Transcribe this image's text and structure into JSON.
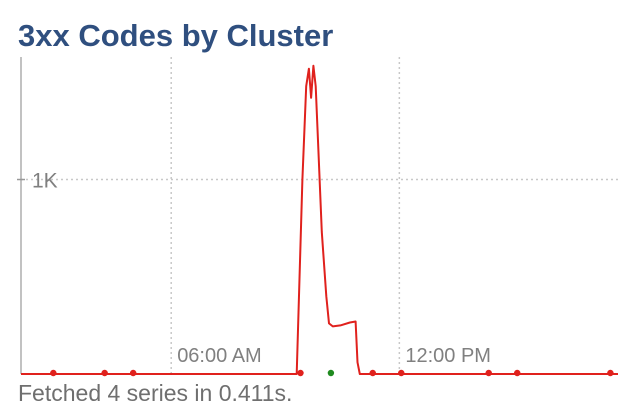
{
  "panel": {
    "title": "3xx Codes by Cluster",
    "footer": "Fetched 4 series in 0.411s."
  },
  "colors": {
    "title": "#2f4f7f",
    "series_red": "#e0211d",
    "series_green": "#1f8a1f",
    "grid": "#c8c8c8",
    "axis": "#999999",
    "tick_label": "#808080",
    "footer": "#6f6f6f"
  },
  "chart_data": {
    "type": "line",
    "title": "3xx Codes by Cluster",
    "xlabel": "",
    "ylabel": "",
    "x_ticks": [
      {
        "label": "06:00 AM",
        "hour": 6
      },
      {
        "label": "12:00 PM",
        "hour": 12
      }
    ],
    "y_ticks": [
      {
        "label": "1K",
        "value": 1000
      }
    ],
    "xlim_hours": [
      2.05,
      17.75
    ],
    "ylim": [
      0,
      1630
    ],
    "grid": true,
    "legend": "none",
    "series": [
      {
        "color": "#e0211d",
        "points": [
          [
            2.05,
            0
          ],
          [
            9.3,
            0
          ],
          [
            9.45,
            1000
          ],
          [
            9.55,
            1480
          ],
          [
            9.62,
            1570
          ],
          [
            9.68,
            1420
          ],
          [
            9.74,
            1585
          ],
          [
            9.8,
            1480
          ],
          [
            9.87,
            1150
          ],
          [
            9.96,
            730
          ],
          [
            10.08,
            400
          ],
          [
            10.15,
            260
          ],
          [
            10.25,
            245
          ],
          [
            10.45,
            250
          ],
          [
            10.7,
            265
          ],
          [
            10.85,
            270
          ],
          [
            10.9,
            60
          ],
          [
            10.96,
            0
          ],
          [
            17.75,
            0
          ]
        ],
        "markers": [
          [
            2.9,
            0
          ],
          [
            4.25,
            0
          ],
          [
            5.0,
            0
          ],
          [
            9.4,
            0
          ],
          [
            11.3,
            0
          ],
          [
            12.05,
            0
          ],
          [
            14.35,
            0
          ],
          [
            15.1,
            0
          ],
          [
            17.55,
            0
          ]
        ]
      },
      {
        "color": "#1f8a1f",
        "points": [],
        "markers": [
          [
            10.2,
            0
          ]
        ]
      }
    ]
  }
}
